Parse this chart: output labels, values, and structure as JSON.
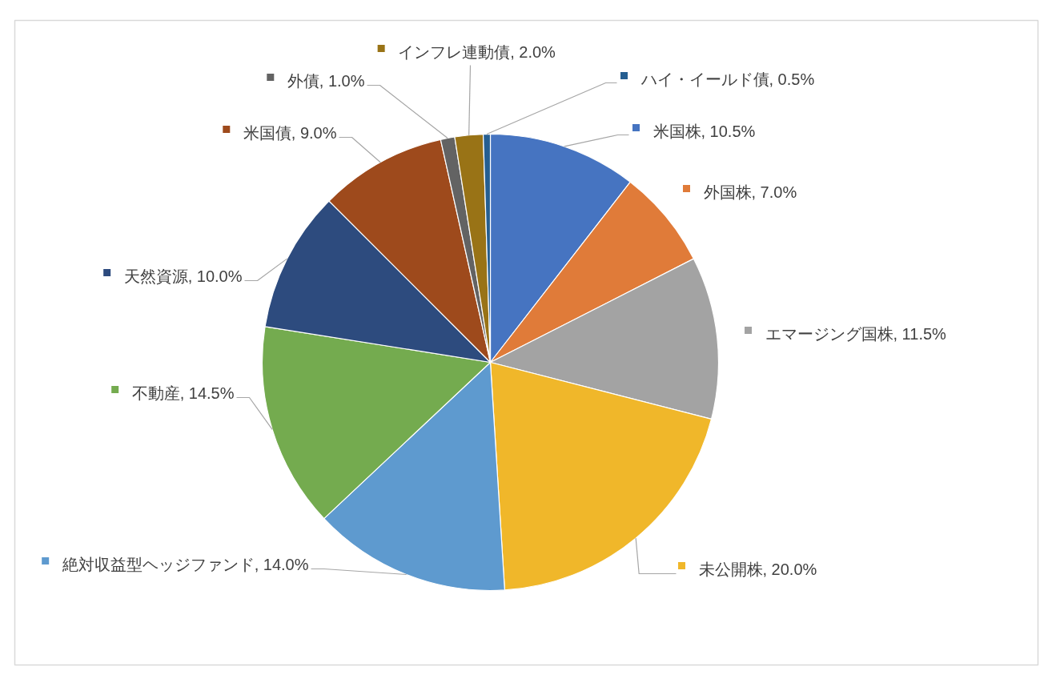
{
  "chart_data": {
    "type": "pie",
    "categories": [
      "米国株",
      "外国株",
      "エマージング国株",
      "未公開株",
      "絶対収益型ヘッジファンド",
      "不動産",
      "天然資源",
      "米国債",
      "外債",
      "インフレ連動債",
      "ハイ・イールド債"
    ],
    "values": [
      10.5,
      7.0,
      11.5,
      20.0,
      14.0,
      14.5,
      10.0,
      9.0,
      1.0,
      2.0,
      0.5
    ],
    "colors": [
      "#4674c1",
      "#e07b39",
      "#a3a3a3",
      "#f0b72a",
      "#5e9acf",
      "#74ab4f",
      "#2d4b7e",
      "#9e4a1c",
      "#636363",
      "#997316",
      "#255e91"
    ],
    "value_labels": [
      "10.5%",
      "7.0%",
      "11.5%",
      "20.0%",
      "14.0%",
      "14.5%",
      "10.0%",
      "9.0%",
      "1.0%",
      "2.0%",
      "0.5%"
    ],
    "legend": "center"
  }
}
